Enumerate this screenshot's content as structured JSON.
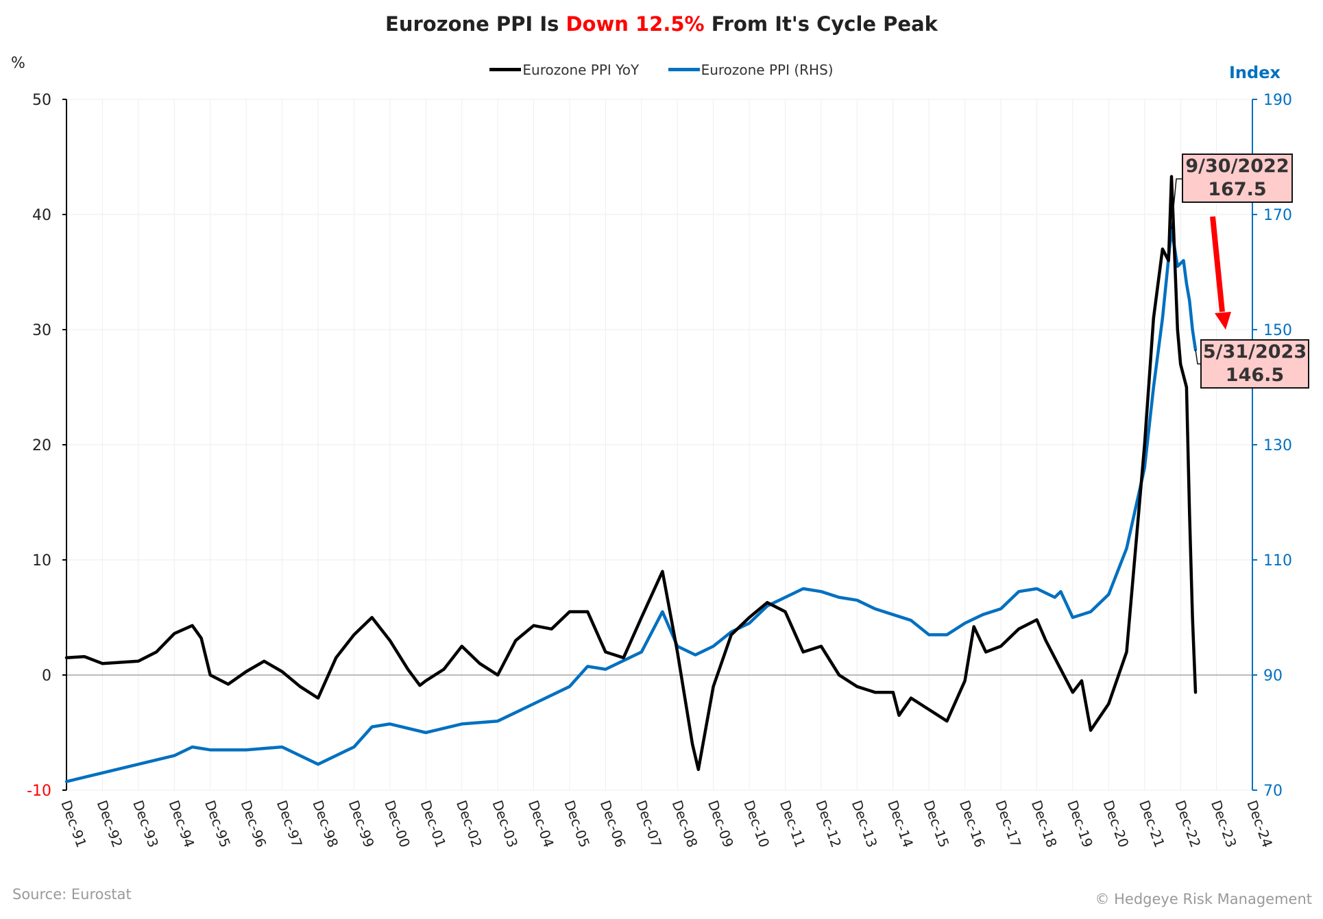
{
  "title": {
    "part1": "Eurozone PPI Is ",
    "highlight": "Down 12.5%",
    "part2": " From It's Cycle Peak"
  },
  "legend": [
    {
      "label": "Eurozone PPI YoY",
      "color": "#000000"
    },
    {
      "label": "Eurozone PPI (RHS)",
      "color": "#0070c0"
    }
  ],
  "source": "Source: Eurostat",
  "copyright": "© Hedgeye Risk Management",
  "annotations": [
    {
      "date": "9/30/2022",
      "value": "167.5"
    },
    {
      "date": "5/31/2023",
      "value": "146.5"
    }
  ],
  "chart_data": {
    "type": "line",
    "title": "Eurozone PPI Is Down 12.5% From It's Cycle Peak",
    "ylabel": "%",
    "ylabel_right": "Index",
    "ylim": [
      -10,
      50
    ],
    "ylim_right": [
      70,
      190
    ],
    "yticks": [
      "50",
      "40",
      "30",
      "20",
      "10",
      "0",
      "-10"
    ],
    "yticks_right": [
      "190",
      "170",
      "150",
      "130",
      "110",
      "90",
      "70"
    ],
    "xticks": [
      "Dec-91",
      "Dec-92",
      "Dec-93",
      "Dec-94",
      "Dec-95",
      "Dec-96",
      "Dec-97",
      "Dec-98",
      "Dec-99",
      "Dec-00",
      "Dec-01",
      "Dec-02",
      "Dec-03",
      "Dec-04",
      "Dec-05",
      "Dec-06",
      "Dec-07",
      "Dec-08",
      "Dec-09",
      "Dec-10",
      "Dec-11",
      "Dec-12",
      "Dec-13",
      "Dec-14",
      "Dec-15",
      "Dec-16",
      "Dec-17",
      "Dec-18",
      "Dec-19",
      "Dec-20",
      "Dec-21",
      "Dec-22",
      "Dec-23",
      "Dec-24"
    ],
    "grid": true,
    "legend_position": "top",
    "series": [
      {
        "name": "Eurozone PPI YoY",
        "axis": "left",
        "color": "#000000",
        "points": [
          [
            "1991-12",
            1.5
          ],
          [
            "1992-06",
            1.6
          ],
          [
            "1992-12",
            1.0
          ],
          [
            "1993-06",
            1.1
          ],
          [
            "1993-12",
            1.2
          ],
          [
            "1994-06",
            2.0
          ],
          [
            "1994-12",
            3.6
          ],
          [
            "1995-06",
            4.3
          ],
          [
            "1995-09",
            3.2
          ],
          [
            "1995-12",
            0.0
          ],
          [
            "1996-06",
            -0.8
          ],
          [
            "1996-12",
            0.3
          ],
          [
            "1997-06",
            1.2
          ],
          [
            "1997-12",
            0.3
          ],
          [
            "1998-06",
            -1.0
          ],
          [
            "1998-12",
            -2.0
          ],
          [
            "1999-06",
            1.5
          ],
          [
            "1999-12",
            3.5
          ],
          [
            "2000-06",
            5.0
          ],
          [
            "2000-12",
            3.0
          ],
          [
            "2001-06",
            0.5
          ],
          [
            "2001-10",
            -0.9
          ],
          [
            "2001-12",
            -0.5
          ],
          [
            "2002-06",
            0.5
          ],
          [
            "2002-12",
            2.5
          ],
          [
            "2003-06",
            1.0
          ],
          [
            "2003-12",
            0.0
          ],
          [
            "2004-06",
            3.0
          ],
          [
            "2004-12",
            4.3
          ],
          [
            "2005-06",
            4.0
          ],
          [
            "2005-12",
            5.5
          ],
          [
            "2006-06",
            5.5
          ],
          [
            "2006-12",
            2.0
          ],
          [
            "2007-06",
            1.5
          ],
          [
            "2007-12",
            5.0
          ],
          [
            "2008-07",
            9.0
          ],
          [
            "2008-12",
            2.0
          ],
          [
            "2009-05",
            -6.0
          ],
          [
            "2009-07",
            -8.2
          ],
          [
            "2009-12",
            -1.0
          ],
          [
            "2010-06",
            3.5
          ],
          [
            "2010-12",
            5.0
          ],
          [
            "2011-06",
            6.3
          ],
          [
            "2011-12",
            5.5
          ],
          [
            "2012-06",
            2.0
          ],
          [
            "2012-12",
            2.5
          ],
          [
            "2013-06",
            0.0
          ],
          [
            "2013-12",
            -1.0
          ],
          [
            "2014-06",
            -1.5
          ],
          [
            "2014-12",
            -1.5
          ],
          [
            "2015-02",
            -3.5
          ],
          [
            "2015-06",
            -2.0
          ],
          [
            "2015-12",
            -3.0
          ],
          [
            "2016-06",
            -4.0
          ],
          [
            "2016-12",
            -0.5
          ],
          [
            "2017-03",
            4.2
          ],
          [
            "2017-07",
            2.0
          ],
          [
            "2017-12",
            2.5
          ],
          [
            "2018-06",
            4.0
          ],
          [
            "2018-12",
            4.8
          ],
          [
            "2019-03",
            3.0
          ],
          [
            "2019-07",
            1.0
          ],
          [
            "2019-12",
            -1.5
          ],
          [
            "2020-03",
            -0.5
          ],
          [
            "2020-06",
            -4.8
          ],
          [
            "2020-12",
            -2.5
          ],
          [
            "2021-06",
            2.0
          ],
          [
            "2021-12",
            20.0
          ],
          [
            "2022-03",
            31.0
          ],
          [
            "2022-06",
            37.0
          ],
          [
            "2022-08",
            36.0
          ],
          [
            "2022-09",
            43.3
          ],
          [
            "2022-11",
            30.0
          ],
          [
            "2022-12",
            27.0
          ],
          [
            "2023-02",
            25.0
          ],
          [
            "2023-03",
            14.0
          ],
          [
            "2023-04",
            5.0
          ],
          [
            "2023-05",
            -1.5
          ]
        ]
      },
      {
        "name": "Eurozone PPI (RHS)",
        "axis": "right",
        "color": "#0070c0",
        "points": [
          [
            "1991-12",
            71.5
          ],
          [
            "1992-12",
            73.0
          ],
          [
            "1993-12",
            74.5
          ],
          [
            "1994-12",
            76.0
          ],
          [
            "1995-06",
            77.5
          ],
          [
            "1995-12",
            77.0
          ],
          [
            "1996-12",
            77.0
          ],
          [
            "1997-12",
            77.5
          ],
          [
            "1998-12",
            74.5
          ],
          [
            "1999-12",
            77.5
          ],
          [
            "2000-06",
            81.0
          ],
          [
            "2000-12",
            81.5
          ],
          [
            "2001-12",
            80.0
          ],
          [
            "2002-12",
            81.5
          ],
          [
            "2003-12",
            82.0
          ],
          [
            "2004-12",
            85.0
          ],
          [
            "2005-12",
            88.0
          ],
          [
            "2006-06",
            91.5
          ],
          [
            "2006-12",
            91.0
          ],
          [
            "2007-12",
            94.0
          ],
          [
            "2008-07",
            101.0
          ],
          [
            "2008-12",
            95.0
          ],
          [
            "2009-06",
            93.5
          ],
          [
            "2009-12",
            95.0
          ],
          [
            "2010-06",
            97.5
          ],
          [
            "2010-12",
            99.0
          ],
          [
            "2011-06",
            102.0
          ],
          [
            "2011-12",
            103.5
          ],
          [
            "2012-06",
            105.0
          ],
          [
            "2012-12",
            104.5
          ],
          [
            "2013-06",
            103.5
          ],
          [
            "2013-12",
            103.0
          ],
          [
            "2014-06",
            101.5
          ],
          [
            "2014-12",
            100.5
          ],
          [
            "2015-06",
            99.5
          ],
          [
            "2015-12",
            97.0
          ],
          [
            "2016-06",
            97.0
          ],
          [
            "2016-12",
            99.0
          ],
          [
            "2017-06",
            100.5
          ],
          [
            "2017-12",
            101.5
          ],
          [
            "2018-06",
            104.5
          ],
          [
            "2018-12",
            105.0
          ],
          [
            "2019-06",
            103.5
          ],
          [
            "2019-08",
            104.5
          ],
          [
            "2019-12",
            100.0
          ],
          [
            "2020-06",
            101.0
          ],
          [
            "2020-12",
            104.0
          ],
          [
            "2021-06",
            112.0
          ],
          [
            "2021-12",
            126.0
          ],
          [
            "2022-03",
            140.0
          ],
          [
            "2022-06",
            152.0
          ],
          [
            "2022-09",
            167.5
          ],
          [
            "2022-11",
            161.0
          ],
          [
            "2023-01",
            162.0
          ],
          [
            "2023-02",
            158.0
          ],
          [
            "2023-03",
            155.0
          ],
          [
            "2023-04",
            150.0
          ],
          [
            "2023-05",
            146.5
          ]
        ]
      }
    ]
  }
}
